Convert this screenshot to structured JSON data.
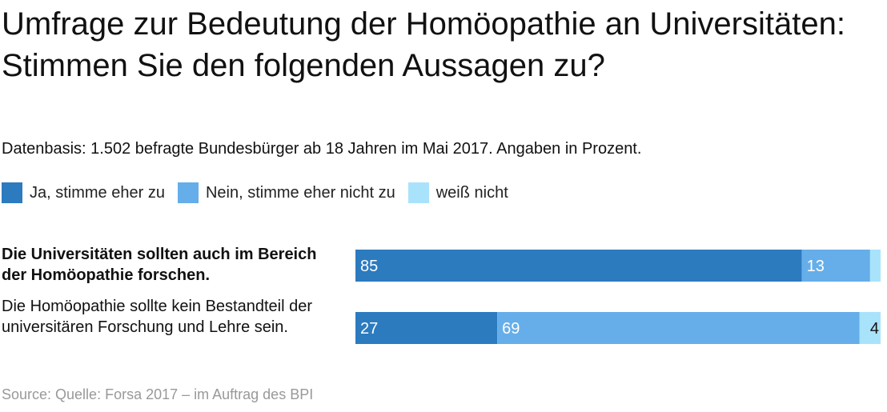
{
  "chart_data": {
    "type": "bar",
    "orientation": "horizontal",
    "stacked": true,
    "title": "Umfrage zur Bedeutung der Homöopathie an Universitäten: Stimmen Sie den folgenden Aussagen zu?",
    "subtitle": "Datenbasis: 1.502 befragte Bundesbürger ab 18 Jahren im Mai 2017. Angaben in Prozent.",
    "xlim": [
      0,
      100
    ],
    "legend_position": "top-left",
    "categories": [
      "Die Universitäten sollten auch im Bereich der Homöopathie forschen.",
      "Die Homöopathie sollte kein Bestandteil der universitären Forschung und Lehre sein."
    ],
    "category_bold": [
      true,
      false
    ],
    "series": [
      {
        "name": "Ja, stimme eher zu",
        "color": "#2c7bbf",
        "values": [
          85,
          27
        ],
        "labels": [
          "85",
          "27"
        ]
      },
      {
        "name": "Nein, stimme eher nicht zu",
        "color": "#66aee9",
        "values": [
          13,
          69
        ],
        "labels": [
          "13",
          "69"
        ]
      },
      {
        "name": "weiß nicht",
        "color": "#a9e3fb",
        "values": [
          2,
          4
        ],
        "labels": [
          "",
          "4"
        ]
      }
    ],
    "source": "Source: Quelle: Forsa 2017 – im Auftrag des BPI"
  }
}
